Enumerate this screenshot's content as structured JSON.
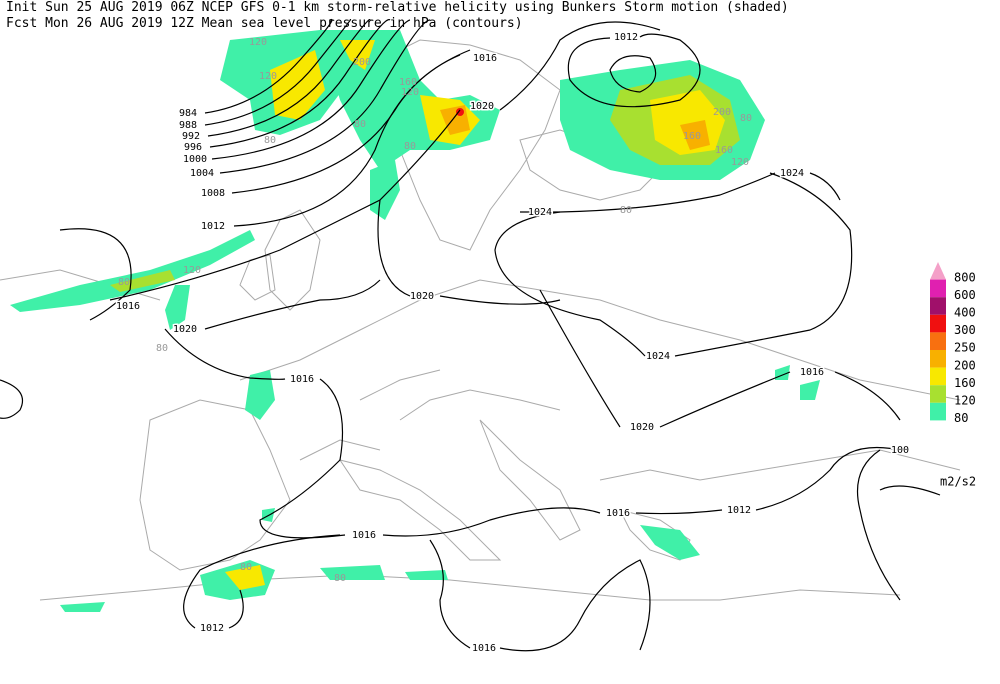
{
  "header": {
    "line1": "Init  Sun 25 AUG 2019 06Z  NCEP GFS 0-1 km storm-relative helicity using Bunkers Storm motion (shaded)",
    "line2": "Fcst Mon 26 AUG 2019 12Z  Mean sea level pressure in hPa (contours)"
  },
  "legend": {
    "items": [
      {
        "label": "800",
        "color": "#f4a0c8"
      },
      {
        "label": "600",
        "color": "#e020b0"
      },
      {
        "label": "400",
        "color": "#a0106a"
      },
      {
        "label": "300",
        "color": "#f01010"
      },
      {
        "label": "250",
        "color": "#f87010"
      },
      {
        "label": "200",
        "color": "#f8b000"
      },
      {
        "label": "160",
        "color": "#f8e800"
      },
      {
        "label": "120",
        "color": "#a8e030"
      },
      {
        "label": "80",
        "color": "#40f0a8"
      }
    ],
    "unit": "m2/s2"
  },
  "contour_labels": [
    "1012",
    "1016",
    "1020",
    "984",
    "988",
    "992",
    "996",
    "1000",
    "1004",
    "1008",
    "1012",
    "1024",
    "1024",
    "1016",
    "1020",
    "1020",
    "1024",
    "1016",
    "1016",
    "1020",
    "100",
    "1016",
    "1012",
    "1016",
    "1012",
    "1016"
  ],
  "shading_labels": [
    "120",
    "120",
    "200",
    "160",
    "120",
    "80",
    "80",
    "80",
    "200",
    "160",
    "80",
    "160",
    "120",
    "80",
    "80",
    "120",
    "80",
    "80",
    "80"
  ]
}
